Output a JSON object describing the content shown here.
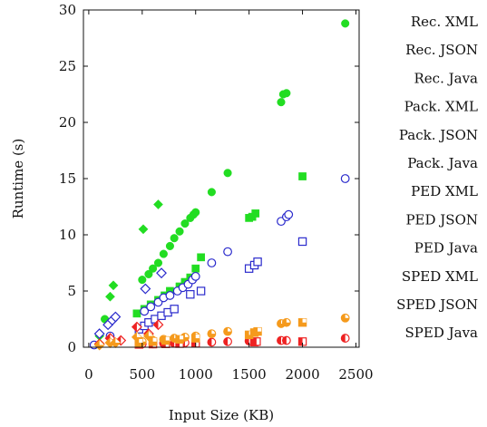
{
  "chart_data": {
    "type": "scatter",
    "xlabel": "Input Size (KB)",
    "ylabel": "Runtime (s)",
    "xlim": [
      -50,
      2530
    ],
    "ylim": [
      0,
      30
    ],
    "x_ticks": [
      0,
      500,
      1000,
      1500,
      2000,
      2500
    ],
    "y_ticks": [
      0,
      5,
      10,
      15,
      20,
      25,
      30
    ],
    "grid": false,
    "legend_position": "right",
    "series": [
      {
        "name": "Rec. XML",
        "color": "#22dd22",
        "marker": "filled-circle",
        "x": [
          150,
          500,
          560,
          600,
          650,
          700,
          760,
          800,
          850,
          900,
          950,
          980,
          1000,
          1150,
          1300,
          1800,
          1820,
          1850,
          2400
        ],
        "y": [
          2.5,
          6.0,
          6.5,
          7.0,
          7.5,
          8.3,
          9.0,
          9.7,
          10.3,
          11.0,
          11.5,
          11.8,
          12.0,
          13.8,
          15.5,
          21.8,
          22.5,
          22.6,
          28.8
        ]
      },
      {
        "name": "Rec. JSON",
        "color": "#22dd22",
        "marker": "filled-diamond",
        "x": [
          100,
          200,
          230,
          510,
          650
        ],
        "y": [
          1.0,
          4.5,
          5.5,
          10.5,
          12.7
        ]
      },
      {
        "name": "Rec. Java",
        "color": "#22dd22",
        "marker": "filled-square",
        "x": [
          450,
          520,
          580,
          650,
          710,
          760,
          850,
          900,
          950,
          1000,
          1050,
          1500,
          1530,
          1560,
          2000
        ],
        "y": [
          3.0,
          3.4,
          3.8,
          4.2,
          4.6,
          5.0,
          5.4,
          5.8,
          6.2,
          7.0,
          8.0,
          11.5,
          11.6,
          11.9,
          15.2
        ]
      },
      {
        "name": "Pack. XML",
        "color": "#2a2acc",
        "marker": "open-circle",
        "x": [
          50,
          200,
          520,
          580,
          650,
          700,
          760,
          830,
          880,
          930,
          970,
          1000,
          1150,
          1300,
          1800,
          1850,
          1870,
          2400
        ],
        "y": [
          0.2,
          1.0,
          3.2,
          3.6,
          4.0,
          4.4,
          4.6,
          5.0,
          5.3,
          5.6,
          6.0,
          6.3,
          7.5,
          8.5,
          11.2,
          11.6,
          11.8,
          15.0
        ]
      },
      {
        "name": "Pack. JSON",
        "color": "#2a2acc",
        "marker": "open-diamond",
        "x": [
          100,
          180,
          220,
          250,
          530,
          680
        ],
        "y": [
          1.2,
          2.0,
          2.4,
          2.7,
          5.2,
          6.6
        ]
      },
      {
        "name": "Pack. Java",
        "color": "#2a2acc",
        "marker": "open-square",
        "x": [
          470,
          520,
          560,
          620,
          680,
          740,
          800,
          950,
          1050,
          1500,
          1550,
          1580,
          2000
        ],
        "y": [
          1.6,
          1.9,
          2.2,
          2.5,
          2.8,
          3.1,
          3.4,
          4.7,
          5.0,
          7.0,
          7.3,
          7.6,
          9.4
        ]
      },
      {
        "name": "PED XML",
        "color": "#ee2222",
        "marker": "half-circle",
        "x": [
          500,
          600,
          700,
          800,
          900,
          1000,
          1150,
          1300,
          1500,
          1800,
          1850,
          2400
        ],
        "y": [
          0.3,
          0.3,
          0.35,
          0.35,
          0.4,
          0.4,
          0.45,
          0.5,
          0.55,
          0.6,
          0.6,
          0.8
        ]
      },
      {
        "name": "PED JSON",
        "color": "#ee2222",
        "marker": "half-diamond",
        "x": [
          100,
          200,
          300,
          450,
          560,
          650
        ],
        "y": [
          0.3,
          0.8,
          0.6,
          1.8,
          1.2,
          2.0
        ]
      },
      {
        "name": "PED Java",
        "color": "#ee2222",
        "marker": "half-square",
        "x": [
          470,
          600,
          720,
          850,
          1000,
          1550,
          1570,
          2000
        ],
        "y": [
          0.25,
          0.28,
          0.3,
          0.32,
          0.35,
          0.45,
          0.5,
          0.5
        ]
      },
      {
        "name": "SPED XML",
        "color": "#f59a1c",
        "marker": "quarter-circle",
        "x": [
          500,
          600,
          700,
          800,
          900,
          1000,
          1150,
          1300,
          1800,
          1850,
          2400
        ],
        "y": [
          0.5,
          0.6,
          0.7,
          0.8,
          0.9,
          1.0,
          1.2,
          1.4,
          2.1,
          2.2,
          2.6
        ]
      },
      {
        "name": "SPED JSON",
        "color": "#f59a1c",
        "marker": "quarter-diamond",
        "x": [
          100,
          200,
          250,
          450,
          560
        ],
        "y": [
          0.2,
          0.4,
          0.4,
          0.9,
          1.0
        ]
      },
      {
        "name": "SPED Java",
        "color": "#f59a1c",
        "marker": "quarter-square",
        "x": [
          470,
          600,
          720,
          850,
          1000,
          1500,
          1550,
          1580,
          2000
        ],
        "y": [
          0.4,
          0.5,
          0.6,
          0.7,
          0.8,
          1.1,
          1.3,
          1.4,
          2.2
        ]
      }
    ]
  }
}
